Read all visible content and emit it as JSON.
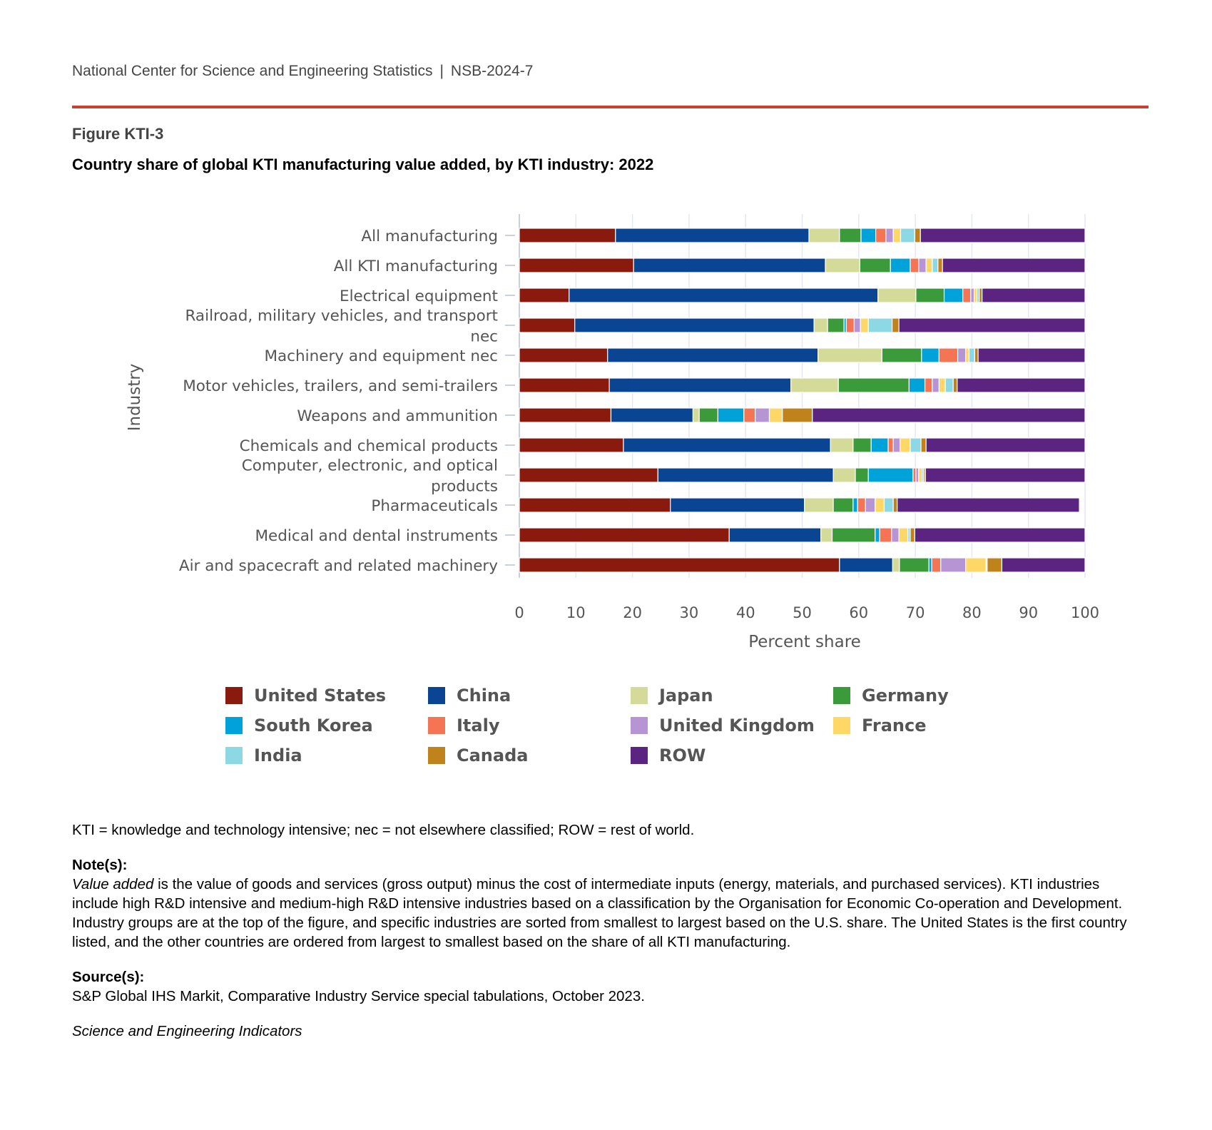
{
  "header": {
    "agency": "National Center for Science and Engineering Statistics",
    "separator": "|",
    "report_id": "NSB-2024-7"
  },
  "figure": {
    "label": "Figure KTI-3",
    "title": "Country share of global KTI manufacturing value added, by KTI industry: 2022"
  },
  "chart_data": {
    "type": "bar",
    "orientation": "horizontal",
    "stacked": true,
    "title": "Country share of global KTI manufacturing value added, by KTI industry: 2022",
    "xlabel": "Percent share",
    "ylabel": "Industry",
    "xlim": [
      0,
      100
    ],
    "xticks": [
      0,
      10,
      20,
      30,
      40,
      50,
      60,
      70,
      80,
      90,
      100
    ],
    "categories": [
      "All manufacturing",
      "All KTI manufacturing",
      "Electrical equipment",
      "Railroad, military vehicles, and transport nec",
      "Machinery and equipment nec",
      "Motor vehicles, trailers, and semi-trailers",
      "Weapons and ammunition",
      "Chemicals and chemical products",
      "Computer, electronic, and optical products",
      "Pharmaceuticals",
      "Medical and dental instruments",
      "Air and spacecraft and related machinery"
    ],
    "category_lines": [
      [
        "All manufacturing"
      ],
      [
        "All KTI manufacturing"
      ],
      [
        "Electrical equipment"
      ],
      [
        "Railroad, military vehicles, and transport",
        "nec"
      ],
      [
        "Machinery and equipment nec"
      ],
      [
        "Motor vehicles, trailers, and semi-trailers"
      ],
      [
        "Weapons and ammunition"
      ],
      [
        "Chemicals and chemical products"
      ],
      [
        "Computer, electronic, and optical",
        "products"
      ],
      [
        "Pharmaceuticals"
      ],
      [
        "Medical and dental instruments"
      ],
      [
        "Air and spacecraft and related machinery"
      ]
    ],
    "series": [
      {
        "name": "United States",
        "color": "#8b1a0e",
        "values": [
          17.0,
          20.2,
          8.8,
          9.8,
          15.6,
          15.9,
          16.2,
          18.4,
          24.5,
          26.7,
          37.1,
          56.6
        ]
      },
      {
        "name": "China",
        "color": "#0a4594",
        "values": [
          34.2,
          33.9,
          54.6,
          42.3,
          37.2,
          32.1,
          14.5,
          36.6,
          31.0,
          23.7,
          16.2,
          9.4
        ]
      },
      {
        "name": "Japan",
        "color": "#d4da97",
        "values": [
          5.4,
          6.1,
          6.7,
          2.4,
          11.3,
          8.4,
          1.1,
          4.0,
          3.9,
          5.1,
          2.0,
          1.2
        ]
      },
      {
        "name": "Germany",
        "color": "#3b9b3b",
        "values": [
          3.8,
          5.4,
          5.0,
          2.9,
          7.0,
          12.5,
          3.3,
          3.2,
          2.3,
          3.5,
          7.6,
          5.2
        ]
      },
      {
        "name": "South Korea",
        "color": "#00a3d9",
        "values": [
          2.6,
          3.5,
          3.3,
          0.4,
          3.1,
          2.8,
          4.6,
          3.0,
          7.9,
          0.8,
          0.8,
          0.5
        ]
      },
      {
        "name": "Italy",
        "color": "#f47454",
        "values": [
          1.8,
          1.5,
          1.4,
          1.4,
          3.3,
          1.3,
          2.0,
          0.9,
          0.5,
          1.4,
          2.1,
          1.6
        ]
      },
      {
        "name": "United Kingdom",
        "color": "#b794d4",
        "values": [
          1.3,
          1.3,
          0.6,
          1.1,
          1.4,
          1.2,
          2.5,
          1.2,
          0.5,
          1.7,
          1.3,
          4.4
        ]
      },
      {
        "name": "France",
        "color": "#fed766",
        "values": [
          1.3,
          1.1,
          0.5,
          1.4,
          0.6,
          1.1,
          2.3,
          1.8,
          0.6,
          1.6,
          1.6,
          3.6
        ]
      },
      {
        "name": "India",
        "color": "#8dd8e5",
        "values": [
          2.5,
          1.0,
          0.4,
          4.2,
          1.0,
          1.4,
          0.0,
          1.9,
          0.3,
          1.6,
          0.4,
          0.2
        ]
      },
      {
        "name": "Canada",
        "color": "#c0821a",
        "values": [
          1.0,
          0.8,
          0.5,
          1.2,
          0.6,
          0.7,
          5.3,
          0.9,
          0.3,
          0.7,
          0.8,
          2.6
        ]
      },
      {
        "name": "ROW",
        "color": "#5b2480",
        "values": [
          29.1,
          25.2,
          18.2,
          32.9,
          18.9,
          22.6,
          48.2,
          28.1,
          28.2,
          32.2,
          30.1,
          14.7
        ]
      }
    ],
    "legend_position": "bottom",
    "grid": true
  },
  "notes": {
    "abbreviations": "KTI = knowledge and technology intensive; nec = not elsewhere classified; ROW = rest of world.",
    "note_heading": "Note(s):",
    "note_term": "Value added",
    "note_text": " is the value of goods and services (gross output) minus the cost of intermediate inputs (energy, materials, and purchased services). KTI industries include high R&D intensive and medium-high R&D intensive industries based on a classification by the Organisation for Economic Co-operation and Development. Industry groups are at the top of the figure, and specific industries are sorted from smallest to largest based on the U.S. share. The United States is the first country listed, and the other countries are ordered from largest to smallest based on the share of all KTI manufacturing.",
    "source_heading": "Source(s):",
    "source_text": "S&P Global IHS Markit, Comparative Industry Service special tabulations, October 2023.",
    "publication": "Science and Engineering Indicators"
  }
}
